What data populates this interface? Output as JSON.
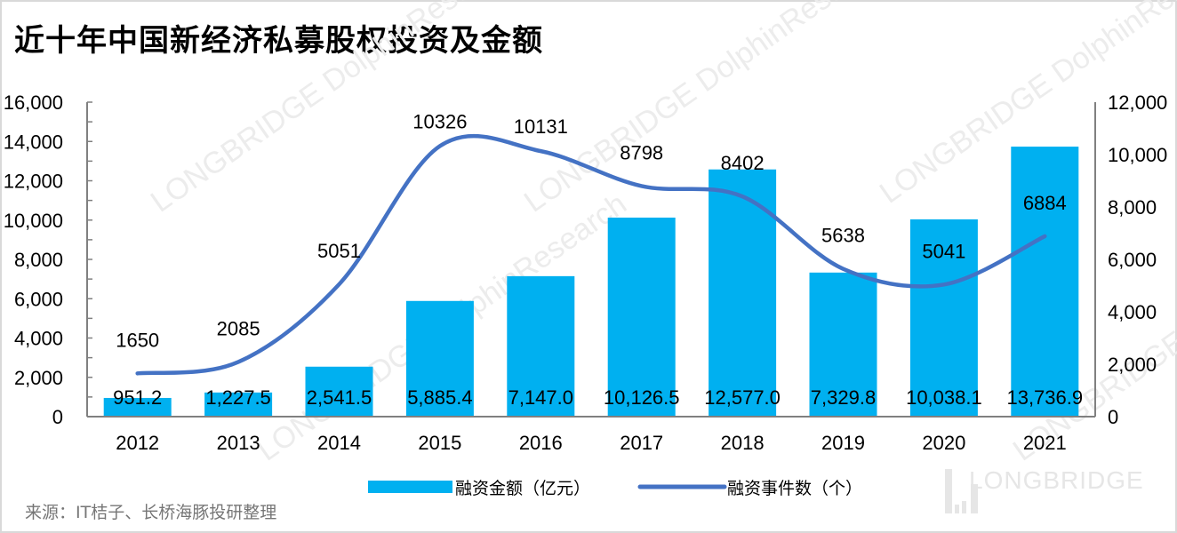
{
  "title": "近十年中国新经济私募股权投资及金额",
  "source": "来源：IT桔子、长桥海豚投研整理",
  "watermark": "LONGBRIDGE DolphinResearch",
  "logo": "LONGBRIDGE",
  "colors": {
    "bar": "#00B0F0",
    "line": "#4472C4",
    "axis": "#808080"
  },
  "chart_data": {
    "type": "bar+line",
    "categories": [
      "2012",
      "2013",
      "2014",
      "2015",
      "2016",
      "2017",
      "2018",
      "2019",
      "2020",
      "2021"
    ],
    "series": [
      {
        "name": "融资金额（亿元）",
        "type": "bar",
        "axis": "left",
        "values": [
          951.2,
          1227.5,
          2541.5,
          5885.4,
          7147.0,
          10126.5,
          12577.0,
          7329.8,
          10038.1,
          13736.9
        ],
        "labels": [
          "951.2",
          "1,227.5",
          "2,541.5",
          "5,885.4",
          "7,147.0",
          "10,126.5",
          "12,577.0",
          "7,329.8",
          "10,038.1",
          "13,736.9"
        ]
      },
      {
        "name": "融资事件数（个）",
        "type": "line",
        "axis": "right",
        "smooth": true,
        "values": [
          1650,
          2085,
          5051,
          10326,
          10131,
          8798,
          8402,
          5638,
          5041,
          6884
        ],
        "labels": [
          "1650",
          "2085",
          "5051",
          "10326",
          "10131",
          "8798",
          "8402",
          "5638",
          "5041",
          "6884"
        ]
      }
    ],
    "left_axis": {
      "range": [
        0,
        16000
      ],
      "ticks": [
        "0",
        "2,000",
        "4,000",
        "6,000",
        "8,000",
        "10,000",
        "12,000",
        "14,000",
        "16,000"
      ]
    },
    "right_axis": {
      "range": [
        0,
        12000
      ],
      "ticks": [
        "0",
        "2,000",
        "4,000",
        "6,000",
        "8,000",
        "10,000",
        "12,000"
      ]
    },
    "grid": false,
    "legend": "bottom"
  }
}
